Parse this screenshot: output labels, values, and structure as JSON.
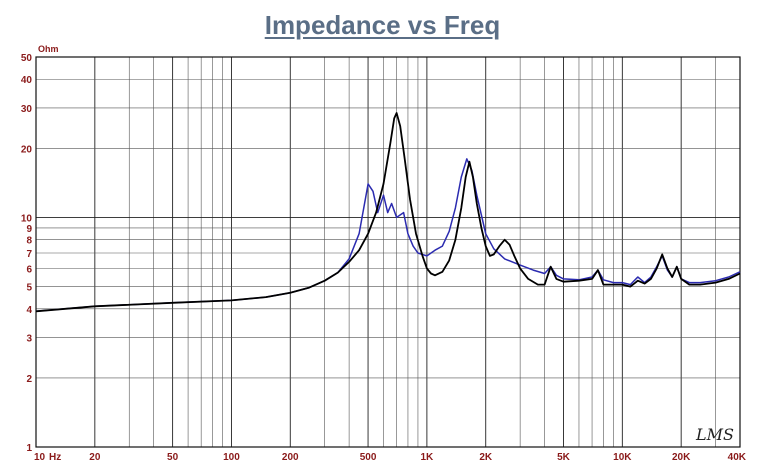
{
  "chart_data": {
    "type": "line",
    "title": "Impedance vs Freq",
    "ylabel": "Ohm",
    "xlabel": "",
    "x_scale": "log",
    "y_scale": "log",
    "xlim": [
      10,
      40000
    ],
    "ylim": [
      1,
      50
    ],
    "x_ticks": [
      {
        "value": 10,
        "label": "10"
      },
      {
        "value": 20,
        "label": "20"
      },
      {
        "value": 50,
        "label": "50"
      },
      {
        "value": 100,
        "label": "100"
      },
      {
        "value": 200,
        "label": "200"
      },
      {
        "value": 500,
        "label": "500"
      },
      {
        "value": 1000,
        "label": "1K"
      },
      {
        "value": 2000,
        "label": "2K"
      },
      {
        "value": 5000,
        "label": "5K"
      },
      {
        "value": 10000,
        "label": "10K"
      },
      {
        "value": 20000,
        "label": "20K"
      },
      {
        "value": 40000,
        "label": "40K"
      }
    ],
    "x_unit": "Hz",
    "y_ticks": [
      {
        "value": 1,
        "label": "1"
      },
      {
        "value": 2,
        "label": "2"
      },
      {
        "value": 3,
        "label": "3"
      },
      {
        "value": 4,
        "label": "4"
      },
      {
        "value": 5,
        "label": "5"
      },
      {
        "value": 6,
        "label": "6"
      },
      {
        "value": 7,
        "label": "7"
      },
      {
        "value": 8,
        "label": "8"
      },
      {
        "value": 9,
        "label": "9"
      },
      {
        "value": 10,
        "label": "10"
      },
      {
        "value": 20,
        "label": "20"
      },
      {
        "value": 30,
        "label": "30"
      },
      {
        "value": 40,
        "label": "40"
      },
      {
        "value": 50,
        "label": "50"
      }
    ],
    "grid": true,
    "watermark": "LMS",
    "series": [
      {
        "color": "#2b2bb0",
        "points": [
          [
            10,
            3.9
          ],
          [
            20,
            4.1
          ],
          [
            50,
            4.25
          ],
          [
            100,
            4.35
          ],
          [
            150,
            4.5
          ],
          [
            200,
            4.7
          ],
          [
            250,
            4.95
          ],
          [
            300,
            5.3
          ],
          [
            350,
            5.75
          ],
          [
            400,
            6.6
          ],
          [
            450,
            8.5
          ],
          [
            500,
            14.0
          ],
          [
            530,
            13.0
          ],
          [
            560,
            10.5
          ],
          [
            600,
            12.5
          ],
          [
            630,
            10.5
          ],
          [
            660,
            11.5
          ],
          [
            700,
            10.0
          ],
          [
            760,
            10.5
          ],
          [
            800,
            8.5
          ],
          [
            850,
            7.5
          ],
          [
            900,
            7.0
          ],
          [
            1000,
            6.8
          ],
          [
            1100,
            7.2
          ],
          [
            1200,
            7.5
          ],
          [
            1300,
            8.7
          ],
          [
            1400,
            11.0
          ],
          [
            1500,
            15.0
          ],
          [
            1600,
            18.0
          ],
          [
            1700,
            16.0
          ],
          [
            1800,
            12.5
          ],
          [
            2000,
            8.5
          ],
          [
            2200,
            7.3
          ],
          [
            2500,
            6.6
          ],
          [
            3000,
            6.2
          ],
          [
            3500,
            5.9
          ],
          [
            4000,
            5.7
          ],
          [
            4300,
            6.1
          ],
          [
            4600,
            5.6
          ],
          [
            5000,
            5.4
          ],
          [
            6000,
            5.35
          ],
          [
            7000,
            5.5
          ],
          [
            7500,
            5.9
          ],
          [
            8000,
            5.35
          ],
          [
            9000,
            5.2
          ],
          [
            10000,
            5.2
          ],
          [
            11000,
            5.1
          ],
          [
            12000,
            5.5
          ],
          [
            13000,
            5.2
          ],
          [
            14000,
            5.5
          ],
          [
            15000,
            6.1
          ],
          [
            16000,
            6.8
          ],
          [
            17000,
            5.9
          ],
          [
            18000,
            5.5
          ],
          [
            19000,
            6.1
          ],
          [
            20000,
            5.4
          ],
          [
            22000,
            5.2
          ],
          [
            25000,
            5.2
          ],
          [
            30000,
            5.3
          ],
          [
            35000,
            5.5
          ],
          [
            40000,
            5.8
          ]
        ]
      },
      {
        "color": "#000000",
        "points": [
          [
            10,
            3.9
          ],
          [
            20,
            4.1
          ],
          [
            50,
            4.25
          ],
          [
            100,
            4.35
          ],
          [
            150,
            4.5
          ],
          [
            200,
            4.7
          ],
          [
            250,
            4.95
          ],
          [
            300,
            5.3
          ],
          [
            350,
            5.75
          ],
          [
            400,
            6.4
          ],
          [
            450,
            7.2
          ],
          [
            500,
            8.5
          ],
          [
            550,
            10.5
          ],
          [
            600,
            14.0
          ],
          [
            650,
            21.0
          ],
          [
            680,
            27.0
          ],
          [
            700,
            28.5
          ],
          [
            730,
            25.0
          ],
          [
            770,
            18.0
          ],
          [
            820,
            12.0
          ],
          [
            880,
            8.5
          ],
          [
            950,
            6.8
          ],
          [
            1000,
            6.0
          ],
          [
            1050,
            5.7
          ],
          [
            1100,
            5.6
          ],
          [
            1200,
            5.8
          ],
          [
            1300,
            6.5
          ],
          [
            1400,
            8.0
          ],
          [
            1500,
            11.0
          ],
          [
            1580,
            15.0
          ],
          [
            1650,
            17.5
          ],
          [
            1720,
            15.0
          ],
          [
            1800,
            11.5
          ],
          [
            1900,
            9.0
          ],
          [
            2000,
            7.5
          ],
          [
            2100,
            6.8
          ],
          [
            2200,
            6.9
          ],
          [
            2350,
            7.5
          ],
          [
            2500,
            8.0
          ],
          [
            2650,
            7.6
          ],
          [
            2800,
            6.8
          ],
          [
            3000,
            6.0
          ],
          [
            3300,
            5.4
          ],
          [
            3700,
            5.1
          ],
          [
            4000,
            5.1
          ],
          [
            4300,
            6.1
          ],
          [
            4600,
            5.4
          ],
          [
            5000,
            5.25
          ],
          [
            6000,
            5.3
          ],
          [
            7000,
            5.4
          ],
          [
            7500,
            5.9
          ],
          [
            8000,
            5.1
          ],
          [
            9000,
            5.1
          ],
          [
            10000,
            5.1
          ],
          [
            11000,
            5.0
          ],
          [
            12000,
            5.3
          ],
          [
            13000,
            5.15
          ],
          [
            14000,
            5.4
          ],
          [
            15000,
            6.0
          ],
          [
            16000,
            6.9
          ],
          [
            17000,
            6.0
          ],
          [
            18000,
            5.5
          ],
          [
            19000,
            6.1
          ],
          [
            20000,
            5.4
          ],
          [
            22000,
            5.1
          ],
          [
            25000,
            5.1
          ],
          [
            30000,
            5.2
          ],
          [
            35000,
            5.4
          ],
          [
            40000,
            5.7
          ]
        ]
      }
    ]
  }
}
